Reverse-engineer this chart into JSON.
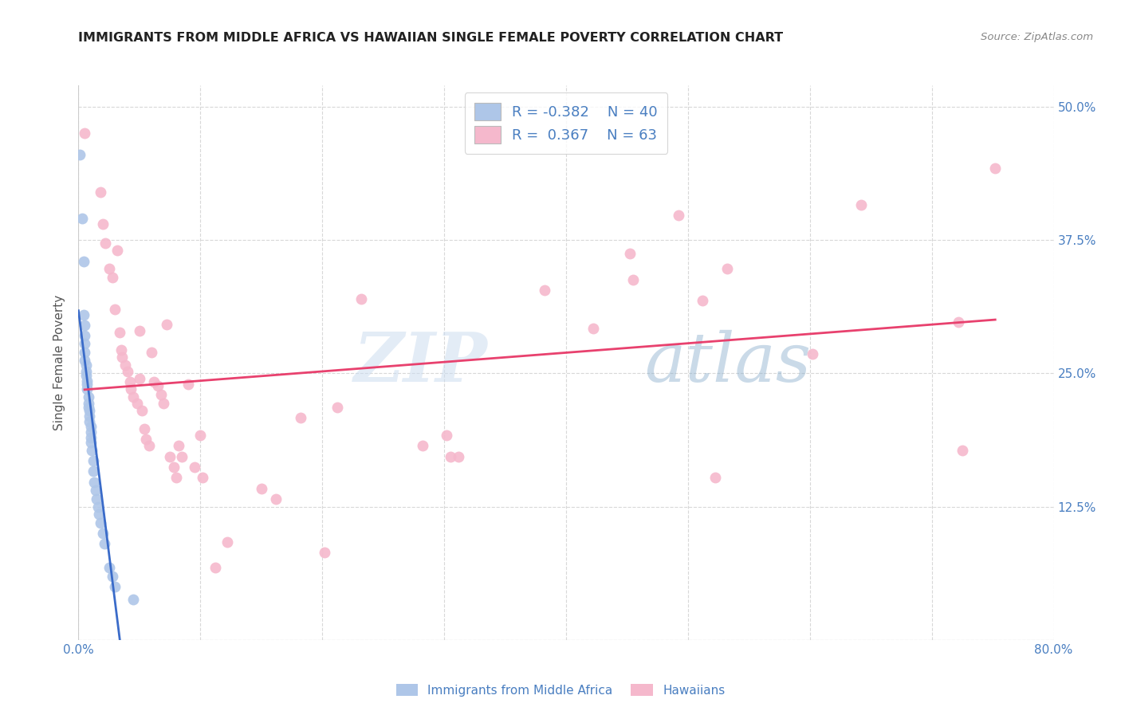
{
  "title": "IMMIGRANTS FROM MIDDLE AFRICA VS HAWAIIAN SINGLE FEMALE POVERTY CORRELATION CHART",
  "source": "Source: ZipAtlas.com",
  "ylabel": "Single Female Poverty",
  "xlim": [
    0.0,
    0.8
  ],
  "ylim": [
    0.0,
    0.52
  ],
  "xtick_vals": [
    0.0,
    0.1,
    0.2,
    0.3,
    0.4,
    0.5,
    0.6,
    0.7,
    0.8
  ],
  "xticklabels": [
    "0.0%",
    "",
    "",
    "",
    "",
    "",
    "",
    "",
    "80.0%"
  ],
  "ytick_values": [
    0.0,
    0.125,
    0.25,
    0.375,
    0.5
  ],
  "ytick_labels": [
    "",
    "12.5%",
    "25.0%",
    "37.5%",
    "50.0%"
  ],
  "legend_blue_r": "-0.382",
  "legend_blue_n": "40",
  "legend_pink_r": "0.367",
  "legend_pink_n": "63",
  "blue_color": "#aec6e8",
  "pink_color": "#f5b8cc",
  "blue_line_color": "#3a6bc9",
  "pink_line_color": "#e8416e",
  "grid_color": "#d8d8d8",
  "background_color": "#ffffff",
  "watermark_zip": "ZIP",
  "watermark_atlas": "atlas",
  "blue_scatter": [
    [
      0.001,
      0.455
    ],
    [
      0.003,
      0.395
    ],
    [
      0.004,
      0.355
    ],
    [
      0.004,
      0.305
    ],
    [
      0.005,
      0.295
    ],
    [
      0.005,
      0.285
    ],
    [
      0.005,
      0.278
    ],
    [
      0.005,
      0.27
    ],
    [
      0.005,
      0.262
    ],
    [
      0.006,
      0.258
    ],
    [
      0.006,
      0.252
    ],
    [
      0.006,
      0.248
    ],
    [
      0.007,
      0.243
    ],
    [
      0.007,
      0.24
    ],
    [
      0.007,
      0.235
    ],
    [
      0.008,
      0.228
    ],
    [
      0.008,
      0.222
    ],
    [
      0.008,
      0.218
    ],
    [
      0.009,
      0.215
    ],
    [
      0.009,
      0.21
    ],
    [
      0.009,
      0.205
    ],
    [
      0.01,
      0.2
    ],
    [
      0.01,
      0.195
    ],
    [
      0.01,
      0.19
    ],
    [
      0.01,
      0.185
    ],
    [
      0.011,
      0.178
    ],
    [
      0.012,
      0.168
    ],
    [
      0.012,
      0.158
    ],
    [
      0.013,
      0.148
    ],
    [
      0.014,
      0.14
    ],
    [
      0.015,
      0.132
    ],
    [
      0.016,
      0.125
    ],
    [
      0.017,
      0.118
    ],
    [
      0.018,
      0.11
    ],
    [
      0.02,
      0.1
    ],
    [
      0.021,
      0.09
    ],
    [
      0.025,
      0.068
    ],
    [
      0.028,
      0.06
    ],
    [
      0.03,
      0.05
    ],
    [
      0.045,
      0.038
    ]
  ],
  "pink_scatter": [
    [
      0.005,
      0.475
    ],
    [
      0.018,
      0.42
    ],
    [
      0.02,
      0.39
    ],
    [
      0.022,
      0.372
    ],
    [
      0.025,
      0.348
    ],
    [
      0.028,
      0.34
    ],
    [
      0.03,
      0.31
    ],
    [
      0.032,
      0.365
    ],
    [
      0.034,
      0.288
    ],
    [
      0.035,
      0.272
    ],
    [
      0.036,
      0.265
    ],
    [
      0.038,
      0.258
    ],
    [
      0.04,
      0.252
    ],
    [
      0.042,
      0.242
    ],
    [
      0.043,
      0.235
    ],
    [
      0.045,
      0.228
    ],
    [
      0.048,
      0.222
    ],
    [
      0.05,
      0.29
    ],
    [
      0.05,
      0.245
    ],
    [
      0.052,
      0.215
    ],
    [
      0.054,
      0.198
    ],
    [
      0.055,
      0.188
    ],
    [
      0.058,
      0.182
    ],
    [
      0.06,
      0.27
    ],
    [
      0.062,
      0.242
    ],
    [
      0.065,
      0.238
    ],
    [
      0.068,
      0.23
    ],
    [
      0.07,
      0.222
    ],
    [
      0.072,
      0.296
    ],
    [
      0.075,
      0.172
    ],
    [
      0.078,
      0.162
    ],
    [
      0.08,
      0.152
    ],
    [
      0.082,
      0.182
    ],
    [
      0.085,
      0.172
    ],
    [
      0.09,
      0.24
    ],
    [
      0.095,
      0.162
    ],
    [
      0.1,
      0.192
    ],
    [
      0.102,
      0.152
    ],
    [
      0.112,
      0.068
    ],
    [
      0.122,
      0.092
    ],
    [
      0.15,
      0.142
    ],
    [
      0.162,
      0.132
    ],
    [
      0.182,
      0.208
    ],
    [
      0.202,
      0.082
    ],
    [
      0.212,
      0.218
    ],
    [
      0.232,
      0.32
    ],
    [
      0.282,
      0.182
    ],
    [
      0.302,
      0.192
    ],
    [
      0.305,
      0.172
    ],
    [
      0.312,
      0.172
    ],
    [
      0.382,
      0.328
    ],
    [
      0.422,
      0.292
    ],
    [
      0.452,
      0.362
    ],
    [
      0.455,
      0.338
    ],
    [
      0.492,
      0.398
    ],
    [
      0.512,
      0.318
    ],
    [
      0.522,
      0.152
    ],
    [
      0.532,
      0.348
    ],
    [
      0.602,
      0.268
    ],
    [
      0.642,
      0.408
    ],
    [
      0.722,
      0.298
    ],
    [
      0.725,
      0.178
    ],
    [
      0.752,
      0.442
    ]
  ]
}
